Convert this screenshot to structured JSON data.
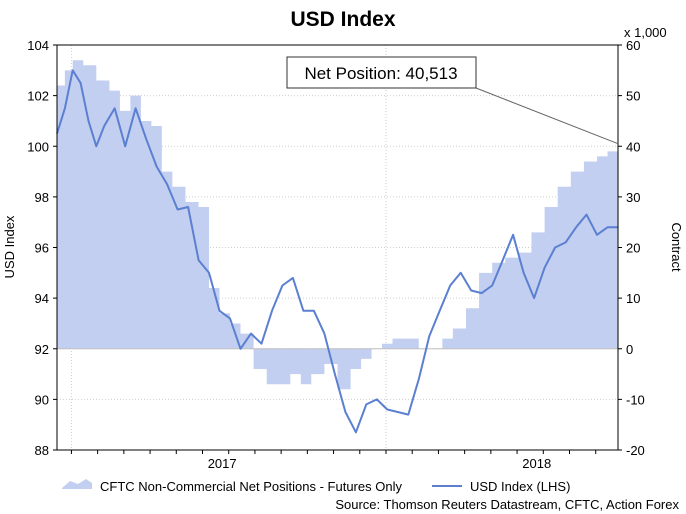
{
  "chart_data": {
    "type": "area",
    "title": "USD Index",
    "left_axis": {
      "label": "USD Index",
      "range": [
        88,
        104
      ],
      "ticks": [
        "88",
        "90",
        "92",
        "94",
        "96",
        "98",
        "100",
        "102",
        "104"
      ]
    },
    "right_axis": {
      "label": "Contract",
      "unit_note": "x 1,000",
      "range": [
        -20,
        60
      ],
      "ticks": [
        "-20",
        "-10",
        "0",
        "10",
        "20",
        "30",
        "40",
        "50",
        "60"
      ]
    },
    "x_ticks": [
      "2017",
      "2018"
    ],
    "x_range_months": [
      0,
      21.4
    ],
    "annotation": {
      "text": "Net Position: 40,513",
      "x": 21.4,
      "y": 40.5
    },
    "series": [
      {
        "name": "CFTC Non-Commercial Net Positions - Futures Only",
        "kind": "area",
        "axis": "right",
        "color": "#c3cff0",
        "x": [
          0,
          0.3,
          0.6,
          1.0,
          1.5,
          2.0,
          2.4,
          2.8,
          3.2,
          3.6,
          4.0,
          4.4,
          4.9,
          5.4,
          5.8,
          6.2,
          6.6,
          7.0,
          7.5,
          8.0,
          8.5,
          8.9,
          9.3,
          9.7,
          10.2,
          10.7,
          11.2,
          11.6,
          12.0,
          12.4,
          12.8,
          13.3,
          13.8,
          14.2,
          14.7,
          15.1,
          15.6,
          16.1,
          16.6,
          17.1,
          17.6,
          18.1,
          18.6,
          19.1,
          19.6,
          20.1,
          20.6,
          21.0,
          21.4
        ],
        "values": [
          52,
          55,
          57,
          56,
          53,
          51,
          47,
          50,
          45,
          44,
          35,
          32,
          29,
          28,
          12,
          7,
          5,
          3,
          -4,
          -7,
          -7,
          -5,
          -7,
          -5,
          -3,
          -8,
          -4,
          -2,
          0,
          1,
          2,
          2,
          0,
          0,
          2,
          4,
          8,
          15,
          17,
          18,
          19,
          23,
          28,
          32,
          35,
          37,
          38,
          39,
          40.5
        ]
      },
      {
        "name": "USD Index (LHS)",
        "kind": "line",
        "axis": "left",
        "color": "#5b7fd1",
        "x": [
          0,
          0.3,
          0.6,
          0.9,
          1.2,
          1.5,
          1.8,
          2.2,
          2.6,
          3.0,
          3.4,
          3.8,
          4.2,
          4.6,
          5.0,
          5.4,
          5.8,
          6.2,
          6.6,
          7.0,
          7.4,
          7.8,
          8.2,
          8.6,
          9.0,
          9.4,
          9.8,
          10.2,
          10.6,
          11.0,
          11.4,
          11.8,
          12.2,
          12.6,
          13.0,
          13.4,
          13.8,
          14.2,
          14.6,
          15.0,
          15.4,
          15.8,
          16.2,
          16.6,
          17.0,
          17.4,
          17.8,
          18.2,
          18.6,
          19.0,
          19.4,
          19.8,
          20.2,
          20.6,
          21.0,
          21.4
        ],
        "values": [
          100.5,
          101.5,
          103.0,
          102.5,
          101.0,
          100.0,
          100.8,
          101.5,
          100.0,
          101.5,
          100.3,
          99.2,
          98.5,
          97.5,
          97.6,
          95.5,
          95.0,
          93.5,
          93.2,
          92.0,
          92.6,
          92.2,
          93.5,
          94.5,
          94.8,
          93.5,
          93.5,
          92.6,
          91.0,
          89.5,
          88.7,
          89.8,
          90.0,
          89.6,
          89.5,
          89.4,
          90.8,
          92.5,
          93.5,
          94.5,
          95.0,
          94.3,
          94.2,
          94.5,
          95.5,
          96.5,
          95.0,
          94.0,
          95.2,
          96.0,
          96.2,
          96.8,
          97.3,
          96.5,
          96.8,
          96.8
        ]
      }
    ],
    "legend": [
      {
        "label": "CFTC Non-Commercial Net Positions - Futures Only",
        "kind": "area"
      },
      {
        "label": "USD Index (LHS)",
        "kind": "line"
      }
    ],
    "legend_position": "bottom",
    "source": "Source: Thomson Reuters Datastream, CFTC, Action Forex",
    "grid": true
  },
  "colors": {
    "area": "#c3cff0",
    "line": "#5b7fd1",
    "grid": "#cfcfcf",
    "zero_line": "#c0c0c0"
  }
}
